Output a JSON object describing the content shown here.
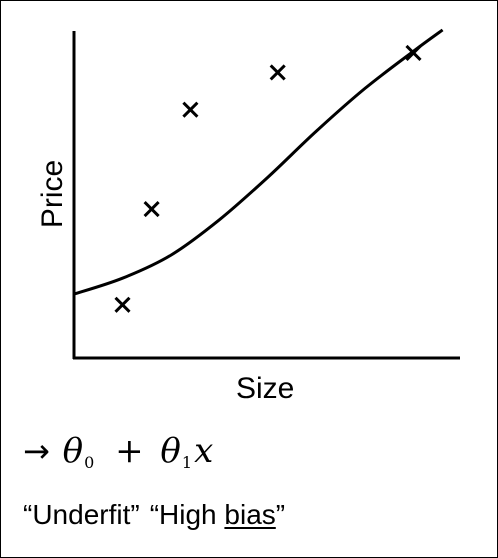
{
  "chart_data": {
    "type": "scatter",
    "xlabel": "Size",
    "ylabel": "Price",
    "x": [
      1.0,
      1.6,
      2.4,
      4.2,
      7.0
    ],
    "y": [
      1.0,
      3.7,
      6.5,
      7.55,
      8.1
    ],
    "fit_curve": {
      "x": [
        0.0,
        1.0,
        2.0,
        3.0,
        4.0,
        5.0,
        6.0,
        7.0,
        7.6
      ],
      "y": [
        1.3,
        1.75,
        2.4,
        3.4,
        4.6,
        5.9,
        7.1,
        8.15,
        8.75
      ]
    },
    "xlim": [
      0,
      8
    ],
    "ylim": [
      -0.5,
      9
    ],
    "grid": false,
    "marker": "x"
  },
  "annotation": {
    "arrow": "→",
    "theta0": "θ",
    "sub0": "0",
    "plus": "+",
    "theta1": "θ",
    "sub1": "1",
    "var": "x"
  },
  "captions": {
    "underfit": "“Underfit”",
    "high_open": "“High ",
    "bias": "bias",
    "high_close": "”"
  },
  "colors": {
    "ink": "#000000",
    "background": "#ffffff"
  }
}
